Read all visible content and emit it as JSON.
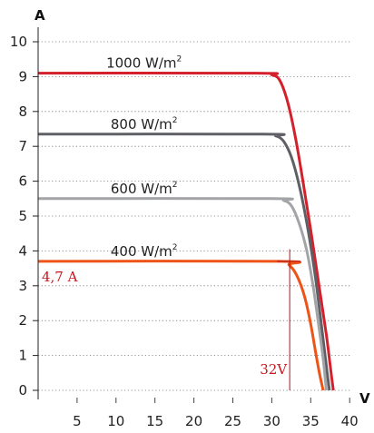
{
  "chart_data": {
    "type": "line",
    "xlabel": "V",
    "ylabel": "A",
    "xlim": [
      0,
      40
    ],
    "ylim": [
      0,
      10
    ],
    "x_ticks": [
      "5",
      "10",
      "15",
      "20",
      "25",
      "30",
      "35",
      "40"
    ],
    "y_ticks": [
      "0",
      "1",
      "2",
      "3",
      "4",
      "5",
      "6",
      "7",
      "8",
      "9",
      "10"
    ],
    "grid": "dotted horizontal",
    "series": [
      {
        "name": "1000 W/m2",
        "label_main": "1000 W/m",
        "label_sup": "2",
        "color": "#d4202c",
        "points": [
          [
            0,
            9.1
          ],
          [
            28,
            9.1
          ],
          [
            30,
            9.05
          ],
          [
            31,
            8.9
          ],
          [
            32,
            8.3
          ],
          [
            33,
            7.3
          ],
          [
            34,
            6.0
          ],
          [
            35,
            4.6
          ],
          [
            36,
            3.1
          ],
          [
            37,
            1.6
          ],
          [
            37.5,
            0.7
          ],
          [
            37.9,
            0
          ]
        ]
      },
      {
        "name": "800 W/m2",
        "label_main": "800 W/m",
        "label_sup": "2",
        "color": "#5f6066",
        "points": [
          [
            0,
            7.35
          ],
          [
            29,
            7.35
          ],
          [
            30.5,
            7.3
          ],
          [
            31.5,
            7.15
          ],
          [
            32.5,
            6.7
          ],
          [
            33.5,
            5.9
          ],
          [
            34.5,
            4.8
          ],
          [
            35.5,
            3.4
          ],
          [
            36.3,
            2.0
          ],
          [
            37,
            0.7
          ],
          [
            37.4,
            0
          ]
        ]
      },
      {
        "name": "600 W/m2",
        "label_main": "600 W/m",
        "label_sup": "2",
        "color": "#a3a4a8",
        "points": [
          [
            0,
            5.5
          ],
          [
            30,
            5.5
          ],
          [
            31.5,
            5.45
          ],
          [
            32.5,
            5.3
          ],
          [
            33.5,
            4.8
          ],
          [
            34.5,
            4.0
          ],
          [
            35.3,
            3.0
          ],
          [
            36,
            1.9
          ],
          [
            36.6,
            0.9
          ],
          [
            37,
            0
          ]
        ]
      },
      {
        "name": "400 W/m2",
        "label_main": "400 W/m",
        "label_sup": "2",
        "color": "#ee5418",
        "points": [
          [
            0,
            3.7
          ],
          [
            31,
            3.7
          ],
          [
            32.2,
            3.6
          ],
          [
            33.2,
            3.3
          ],
          [
            34.2,
            2.7
          ],
          [
            35,
            1.9
          ],
          [
            35.7,
            1.0
          ],
          [
            36.2,
            0.4
          ],
          [
            36.6,
            0
          ]
        ]
      }
    ],
    "annotations": [
      {
        "text": "4,7 A",
        "color": "#c9151e"
      },
      {
        "text": "32V",
        "color": "#c9151e"
      }
    ],
    "operating_point": {
      "voltage": 32.3,
      "current": 3.7,
      "color": "#b0141e"
    }
  }
}
